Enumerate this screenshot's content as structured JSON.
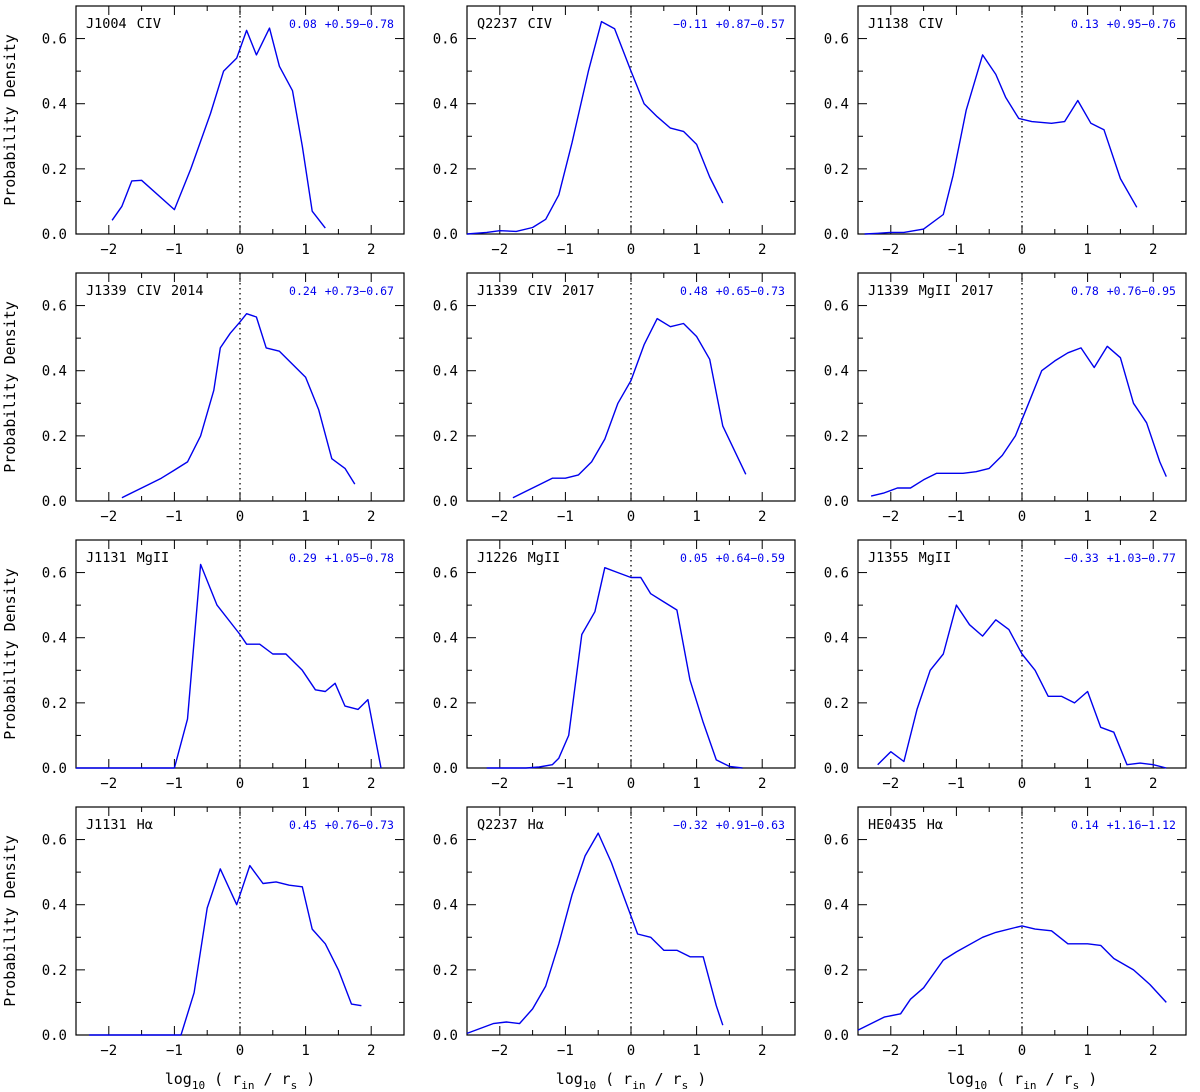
{
  "xlabel": {
    "main": "log",
    "sub": "10",
    "open": " ( r",
    "sub_in": "in",
    "mid": " / r",
    "sub_s": "s",
    "close": " )"
  },
  "ylabel": "Probability Density",
  "chart_data": [
    {
      "type": "line",
      "object": "J1004",
      "line": "CIV",
      "epoch": "",
      "stat_value": "0.08",
      "stat_range": "+0.59−0.78",
      "xlim": [
        -2.5,
        2.5
      ],
      "ylim": [
        0,
        0.7
      ],
      "x": [
        -1.95,
        -1.8,
        -1.65,
        -1.5,
        -1.0,
        -0.75,
        -0.45,
        -0.25,
        -0.05,
        0.1,
        0.25,
        0.45,
        0.6,
        0.8,
        0.95,
        1.1,
        1.3
      ],
      "y": [
        0.042,
        0.085,
        0.163,
        0.165,
        0.075,
        0.2,
        0.37,
        0.5,
        0.54,
        0.625,
        0.55,
        0.632,
        0.515,
        0.44,
        0.27,
        0.07,
        0.018
      ]
    },
    {
      "type": "line",
      "object": "Q2237",
      "line": "CIV",
      "epoch": "",
      "stat_value": "−0.11",
      "stat_range": "+0.87−0.57",
      "xlim": [
        -2.5,
        2.5
      ],
      "ylim": [
        0,
        0.7
      ],
      "x": [
        -2.5,
        -2.2,
        -2.0,
        -1.75,
        -1.5,
        -1.3,
        -1.1,
        -0.9,
        -0.65,
        -0.45,
        -0.25,
        0.0,
        0.2,
        0.4,
        0.6,
        0.8,
        1.0,
        1.2,
        1.4
      ],
      "y": [
        0.0,
        0.005,
        0.01,
        0.008,
        0.02,
        0.045,
        0.12,
        0.28,
        0.5,
        0.652,
        0.63,
        0.5,
        0.4,
        0.36,
        0.325,
        0.315,
        0.275,
        0.175,
        0.095
      ]
    },
    {
      "type": "line",
      "object": "J1138",
      "line": "CIV",
      "epoch": "",
      "stat_value": "0.13",
      "stat_range": "+0.95−0.76",
      "xlim": [
        -2.5,
        2.5
      ],
      "ylim": [
        0,
        0.7
      ],
      "x": [
        -2.4,
        -2.2,
        -2.0,
        -1.8,
        -1.5,
        -1.2,
        -1.05,
        -0.85,
        -0.6,
        -0.4,
        -0.25,
        -0.05,
        0.15,
        0.45,
        0.65,
        0.85,
        1.05,
        1.25,
        1.5,
        1.75
      ],
      "y": [
        0.0,
        0.002,
        0.005,
        0.005,
        0.015,
        0.06,
        0.18,
        0.38,
        0.55,
        0.49,
        0.42,
        0.355,
        0.345,
        0.34,
        0.345,
        0.41,
        0.34,
        0.32,
        0.17,
        0.082
      ]
    },
    {
      "type": "line",
      "object": "J1339",
      "line": "CIV",
      "epoch": "2014",
      "stat_value": "0.24",
      "stat_range": "+0.73−0.67",
      "xlim": [
        -2.5,
        2.5
      ],
      "ylim": [
        0,
        0.7
      ],
      "x": [
        -1.8,
        -1.6,
        -1.4,
        -1.2,
        -1.0,
        -0.8,
        -0.6,
        -0.4,
        -0.3,
        -0.15,
        0.0,
        0.1,
        0.25,
        0.4,
        0.6,
        0.8,
        1.0,
        1.2,
        1.4,
        1.6,
        1.75
      ],
      "y": [
        0.01,
        0.03,
        0.05,
        0.07,
        0.095,
        0.12,
        0.2,
        0.34,
        0.47,
        0.515,
        0.55,
        0.575,
        0.565,
        0.47,
        0.46,
        0.42,
        0.38,
        0.28,
        0.13,
        0.1,
        0.052
      ]
    },
    {
      "type": "line",
      "object": "J1339",
      "line": "CIV",
      "epoch": "2017",
      "stat_value": "0.48",
      "stat_range": "+0.65−0.73",
      "xlim": [
        -2.5,
        2.5
      ],
      "ylim": [
        0,
        0.7
      ],
      "x": [
        -1.8,
        -1.6,
        -1.4,
        -1.2,
        -1.0,
        -0.8,
        -0.6,
        -0.4,
        -0.2,
        0.0,
        0.2,
        0.4,
        0.6,
        0.8,
        1.0,
        1.2,
        1.4,
        1.75
      ],
      "y": [
        0.01,
        0.03,
        0.05,
        0.07,
        0.07,
        0.08,
        0.12,
        0.19,
        0.3,
        0.37,
        0.48,
        0.56,
        0.535,
        0.545,
        0.505,
        0.435,
        0.23,
        0.082
      ]
    },
    {
      "type": "line",
      "object": "J1339",
      "line": "MgII",
      "epoch": "2017",
      "stat_value": "0.78",
      "stat_range": "+0.76−0.95",
      "xlim": [
        -2.5,
        2.5
      ],
      "ylim": [
        0,
        0.7
      ],
      "x": [
        -2.3,
        -2.1,
        -1.9,
        -1.7,
        -1.5,
        -1.3,
        -1.1,
        -0.9,
        -0.7,
        -0.5,
        -0.3,
        -0.1,
        0.1,
        0.3,
        0.5,
        0.7,
        0.9,
        1.1,
        1.3,
        1.5,
        1.7,
        1.9,
        2.1,
        2.2
      ],
      "y": [
        0.015,
        0.025,
        0.04,
        0.04,
        0.065,
        0.085,
        0.085,
        0.085,
        0.09,
        0.1,
        0.14,
        0.2,
        0.3,
        0.4,
        0.43,
        0.455,
        0.47,
        0.41,
        0.475,
        0.44,
        0.3,
        0.24,
        0.12,
        0.075
      ]
    },
    {
      "type": "line",
      "object": "J1131",
      "line": "MgII",
      "epoch": "",
      "stat_value": "0.29",
      "stat_range": "+1.05−0.78",
      "xlim": [
        -2.5,
        2.5
      ],
      "ylim": [
        0,
        0.7
      ],
      "x": [
        -2.5,
        -2.0,
        -1.5,
        -1.0,
        -0.8,
        -0.6,
        -0.35,
        0.0,
        0.1,
        0.3,
        0.5,
        0.7,
        0.95,
        1.15,
        1.3,
        1.45,
        1.6,
        1.8,
        1.95,
        2.15
      ],
      "y": [
        0.0,
        0.0,
        0.0,
        0.0,
        0.15,
        0.625,
        0.5,
        0.41,
        0.38,
        0.38,
        0.35,
        0.35,
        0.3,
        0.24,
        0.235,
        0.26,
        0.19,
        0.18,
        0.21,
        0.0
      ]
    },
    {
      "type": "line",
      "object": "J1226",
      "line": "MgII",
      "epoch": "",
      "stat_value": "0.05",
      "stat_range": "+0.64−0.59",
      "xlim": [
        -2.5,
        2.5
      ],
      "ylim": [
        0,
        0.7
      ],
      "x": [
        -2.2,
        -2.0,
        -1.8,
        -1.6,
        -1.4,
        -1.2,
        -1.1,
        -0.95,
        -0.75,
        -0.55,
        -0.4,
        -0.2,
        0.0,
        0.15,
        0.3,
        0.5,
        0.7,
        0.9,
        1.1,
        1.3,
        1.5,
        1.7
      ],
      "y": [
        0.0,
        0.0,
        0.0,
        0.0,
        0.003,
        0.01,
        0.03,
        0.1,
        0.41,
        0.48,
        0.615,
        0.6,
        0.585,
        0.585,
        0.535,
        0.51,
        0.485,
        0.27,
        0.14,
        0.025,
        0.005,
        0.0
      ]
    },
    {
      "type": "line",
      "object": "J1355",
      "line": "MgII",
      "epoch": "",
      "stat_value": "−0.33",
      "stat_range": "+1.03−0.77",
      "xlim": [
        -2.5,
        2.5
      ],
      "ylim": [
        0,
        0.7
      ],
      "x": [
        -2.2,
        -2.0,
        -1.8,
        -1.6,
        -1.4,
        -1.2,
        -1.0,
        -0.8,
        -0.6,
        -0.4,
        -0.2,
        0.0,
        0.2,
        0.4,
        0.6,
        0.8,
        1.0,
        1.2,
        1.4,
        1.6,
        1.8,
        2.0,
        2.2
      ],
      "y": [
        0.01,
        0.05,
        0.02,
        0.18,
        0.3,
        0.35,
        0.5,
        0.44,
        0.405,
        0.455,
        0.425,
        0.35,
        0.3,
        0.22,
        0.22,
        0.2,
        0.235,
        0.125,
        0.11,
        0.01,
        0.015,
        0.01,
        0.0
      ]
    },
    {
      "type": "line",
      "object": "J1131",
      "line": "Hα",
      "epoch": "",
      "stat_value": "0.45",
      "stat_range": "+0.76−0.73",
      "xlim": [
        -2.5,
        2.5
      ],
      "ylim": [
        0,
        0.7
      ],
      "x": [
        -2.3,
        -1.8,
        -1.3,
        -0.9,
        -0.7,
        -0.5,
        -0.3,
        -0.05,
        0.15,
        0.35,
        0.55,
        0.75,
        0.95,
        1.1,
        1.3,
        1.5,
        1.7,
        1.85
      ],
      "y": [
        0.0,
        0.0,
        0.0,
        0.0,
        0.13,
        0.39,
        0.51,
        0.4,
        0.52,
        0.465,
        0.47,
        0.46,
        0.455,
        0.325,
        0.28,
        0.2,
        0.095,
        0.09
      ]
    },
    {
      "type": "line",
      "object": "Q2237",
      "line": "Hα",
      "epoch": "",
      "stat_value": "−0.32",
      "stat_range": "+0.91−0.63",
      "xlim": [
        -2.5,
        2.5
      ],
      "ylim": [
        0,
        0.7
      ],
      "x": [
        -2.5,
        -2.3,
        -2.1,
        -1.9,
        -1.7,
        -1.5,
        -1.3,
        -1.1,
        -0.9,
        -0.7,
        -0.5,
        -0.3,
        -0.1,
        0.1,
        0.3,
        0.5,
        0.7,
        0.9,
        1.1,
        1.3,
        1.4
      ],
      "y": [
        0.005,
        0.02,
        0.035,
        0.04,
        0.035,
        0.08,
        0.15,
        0.28,
        0.43,
        0.55,
        0.62,
        0.53,
        0.42,
        0.31,
        0.3,
        0.26,
        0.26,
        0.24,
        0.24,
        0.09,
        0.03
      ]
    },
    {
      "type": "line",
      "object": "HE0435",
      "line": "Hα",
      "epoch": "",
      "stat_value": "0.14",
      "stat_range": "+1.16−1.12",
      "xlim": [
        -2.5,
        2.5
      ],
      "ylim": [
        0,
        0.7
      ],
      "x": [
        -2.5,
        -2.1,
        -1.85,
        -1.7,
        -1.5,
        -1.2,
        -1.0,
        -0.6,
        -0.4,
        -0.1,
        0.0,
        0.2,
        0.45,
        0.7,
        1.0,
        1.2,
        1.4,
        1.7,
        1.95,
        2.2
      ],
      "y": [
        0.015,
        0.055,
        0.065,
        0.11,
        0.145,
        0.23,
        0.255,
        0.3,
        0.315,
        0.33,
        0.335,
        0.325,
        0.32,
        0.28,
        0.28,
        0.275,
        0.235,
        0.2,
        0.155,
        0.1
      ]
    }
  ]
}
